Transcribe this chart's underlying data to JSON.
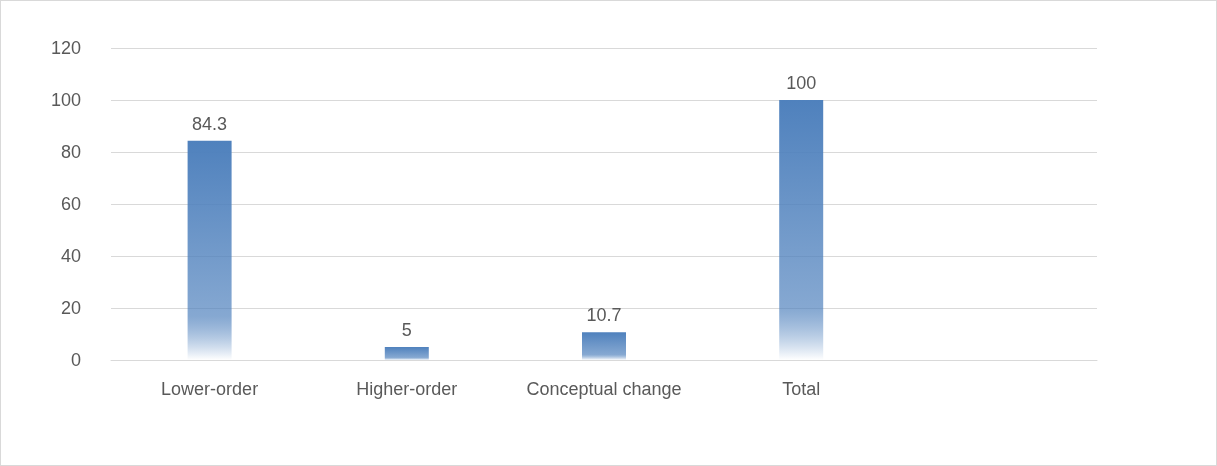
{
  "chart_data": {
    "type": "bar",
    "categories": [
      "Lower-order",
      "Higher-order",
      "Conceptual change",
      "Total",
      null
    ],
    "series": [
      {
        "color": "#4f81bd",
        "values": [
          84.3,
          5,
          10.7,
          100,
          null
        ]
      }
    ],
    "ylim": [
      0,
      120
    ],
    "yticks": [
      0,
      20,
      40,
      60,
      80,
      100,
      120
    ],
    "grid": "y",
    "data_labels": true
  }
}
